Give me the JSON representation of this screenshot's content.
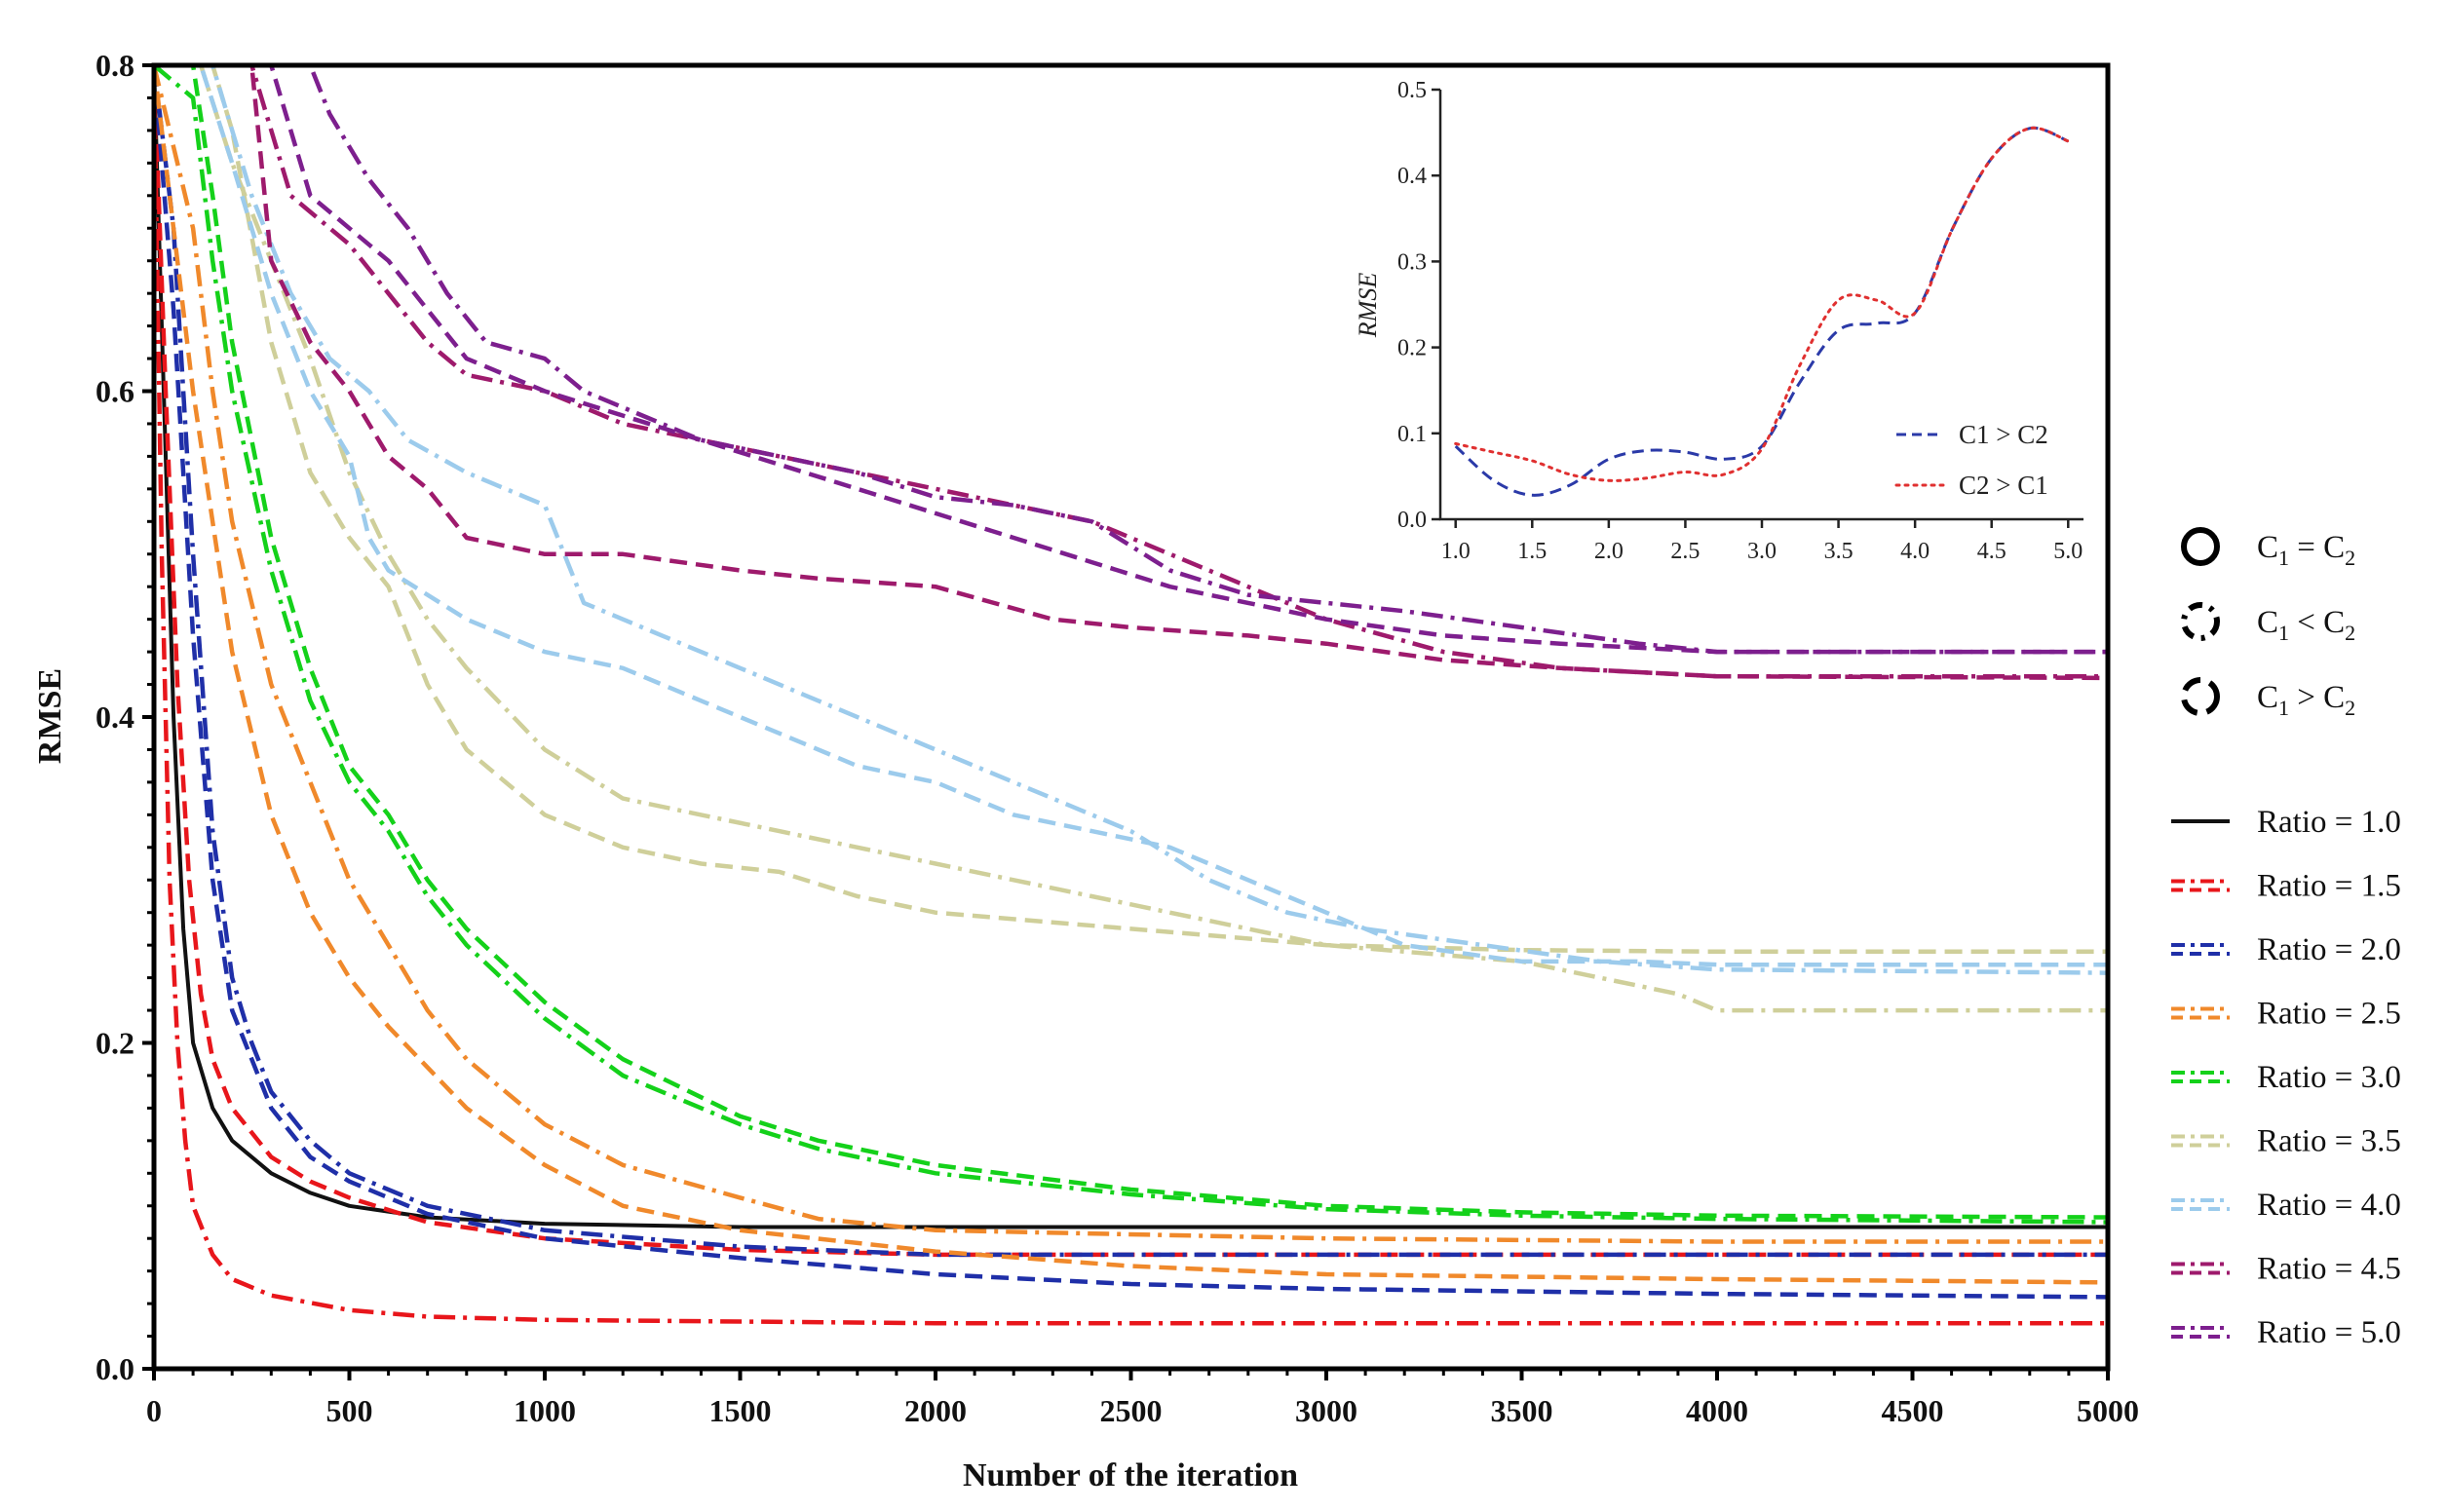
{
  "chart_data": [
    {
      "type": "line",
      "title": "",
      "xlabel": "Number of the iteration",
      "ylabel": "RMSE",
      "xlim": [
        0,
        5000
      ],
      "ylim": [
        0,
        0.8
      ],
      "xticks": [
        "0",
        "500",
        "1000",
        "1500",
        "2000",
        "2500",
        "3000",
        "3500",
        "4000",
        "4500",
        "5000"
      ],
      "yticks": [
        "0.0",
        "0.2",
        "0.4",
        "0.6",
        "0.8"
      ],
      "grid": false,
      "legend_position": "right",
      "style_legend": [
        {
          "name": "C1 = C2",
          "sym_main": "C",
          "sub1": "1",
          "op": " = ",
          "sub2": "2",
          "style": "solid"
        },
        {
          "name": "C1 < C2",
          "sym_main": "C",
          "sub1": "1",
          "op": " < ",
          "sub2": "2",
          "style": "dash-dot"
        },
        {
          "name": "C1 > C2",
          "sym_main": "C",
          "sub1": "1",
          "op": " > ",
          "sub2": "2",
          "style": "dashed"
        }
      ],
      "series": [
        {
          "name": "Ratio = 1.0",
          "color": "#111111",
          "style": "solid",
          "x": [
            0,
            25,
            50,
            75,
            100,
            150,
            200,
            300,
            400,
            500,
            700,
            1000,
            1500,
            2000,
            3000,
            4000,
            5000
          ],
          "values": [
            0.8,
            0.6,
            0.4,
            0.27,
            0.2,
            0.16,
            0.14,
            0.12,
            0.108,
            0.1,
            0.093,
            0.089,
            0.087,
            0.087,
            0.087,
            0.087,
            0.087
          ]
        },
        {
          "name": "Ratio = 1.5 (C1 < C2)",
          "color": "#e8161b",
          "style": "dash-dot",
          "x": [
            0,
            20,
            40,
            60,
            80,
            100,
            150,
            200,
            300,
            500,
            700,
            1000,
            1500,
            2000,
            3000,
            4000,
            5000
          ],
          "values": [
            0.8,
            0.5,
            0.3,
            0.2,
            0.14,
            0.1,
            0.07,
            0.055,
            0.045,
            0.036,
            0.032,
            0.03,
            0.029,
            0.028,
            0.028,
            0.028,
            0.028
          ]
        },
        {
          "name": "Ratio = 1.5 (C1 > C2)",
          "color": "#e8161b",
          "style": "dashed",
          "x": [
            0,
            30,
            60,
            90,
            120,
            150,
            200,
            300,
            400,
            500,
            700,
            1000,
            1500,
            2000,
            3000,
            5000
          ],
          "values": [
            0.8,
            0.6,
            0.42,
            0.3,
            0.23,
            0.19,
            0.16,
            0.13,
            0.115,
            0.105,
            0.09,
            0.08,
            0.073,
            0.07,
            0.07,
            0.07
          ]
        },
        {
          "name": "Ratio = 2.0 (C1 < C2)",
          "color": "#1f2fa8",
          "style": "dash-dot",
          "x": [
            0,
            50,
            100,
            150,
            200,
            250,
            300,
            400,
            500,
            700,
            1000,
            1500,
            2000,
            3000,
            4000,
            5000
          ],
          "values": [
            0.8,
            0.7,
            0.5,
            0.33,
            0.24,
            0.2,
            0.17,
            0.14,
            0.12,
            0.1,
            0.085,
            0.075,
            0.07,
            0.07,
            0.07,
            0.07
          ]
        },
        {
          "name": "Ratio = 2.0 (C1 > C2)",
          "color": "#1f2fa8",
          "style": "dashed",
          "x": [
            0,
            50,
            100,
            150,
            200,
            250,
            300,
            400,
            500,
            700,
            1000,
            1500,
            2000,
            2500,
            3000,
            4000,
            5000
          ],
          "values": [
            0.8,
            0.65,
            0.45,
            0.3,
            0.22,
            0.19,
            0.16,
            0.13,
            0.115,
            0.095,
            0.08,
            0.068,
            0.058,
            0.052,
            0.049,
            0.046,
            0.044
          ]
        },
        {
          "name": "Ratio = 2.5 (C1 < C2)",
          "color": "#f0892b",
          "style": "dash-dot",
          "x": [
            0,
            100,
            150,
            200,
            300,
            400,
            500,
            600,
            700,
            800,
            1000,
            1200,
            1500,
            1700,
            2000,
            3000,
            4000,
            5000
          ],
          "values": [
            0.8,
            0.7,
            0.6,
            0.52,
            0.42,
            0.36,
            0.3,
            0.26,
            0.22,
            0.19,
            0.15,
            0.125,
            0.105,
            0.092,
            0.085,
            0.08,
            0.078,
            0.078
          ]
        },
        {
          "name": "Ratio = 2.5 (C1 > C2)",
          "color": "#f0892b",
          "style": "dashed",
          "x": [
            0,
            100,
            200,
            300,
            400,
            500,
            600,
            800,
            1000,
            1200,
            1500,
            2000,
            2500,
            3000,
            4000,
            5000
          ],
          "values": [
            0.8,
            0.6,
            0.44,
            0.34,
            0.28,
            0.24,
            0.21,
            0.16,
            0.125,
            0.1,
            0.085,
            0.072,
            0.063,
            0.058,
            0.055,
            0.053
          ]
        },
        {
          "name": "Ratio = 3.0 (C1 < C2)",
          "color": "#14d11a",
          "style": "dash-dot",
          "x": [
            0,
            100,
            150,
            200,
            300,
            400,
            500,
            600,
            700,
            800,
            1000,
            1200,
            1500,
            1700,
            2000,
            2500,
            3000,
            3500,
            4000,
            5000
          ],
          "values": [
            0.8,
            0.78,
            0.68,
            0.6,
            0.49,
            0.41,
            0.36,
            0.33,
            0.29,
            0.26,
            0.215,
            0.18,
            0.15,
            0.135,
            0.12,
            0.107,
            0.098,
            0.094,
            0.092,
            0.09
          ]
        },
        {
          "name": "Ratio = 3.0 (C1 > C2)",
          "color": "#14d11a",
          "style": "dashed",
          "x": [
            0,
            100,
            150,
            200,
            300,
            400,
            500,
            600,
            700,
            800,
            1000,
            1200,
            1500,
            1700,
            2000,
            2500,
            3000,
            3500,
            4000,
            5000
          ],
          "values": [
            0.8,
            0.8,
            0.72,
            0.63,
            0.51,
            0.43,
            0.37,
            0.34,
            0.3,
            0.27,
            0.225,
            0.19,
            0.155,
            0.14,
            0.125,
            0.11,
            0.1,
            0.096,
            0.094,
            0.093
          ]
        },
        {
          "name": "Ratio = 3.5 (C1 < C2)",
          "color": "#cfcf9a",
          "style": "dash-dot",
          "x": [
            0,
            120,
            200,
            300,
            400,
            500,
            600,
            700,
            800,
            1000,
            1200,
            1400,
            1600,
            1800,
            2000,
            2200,
            2400,
            2800,
            3000,
            3500,
            3700,
            3900,
            4000,
            5000
          ],
          "values": [
            0.8,
            0.8,
            0.74,
            0.68,
            0.62,
            0.55,
            0.5,
            0.46,
            0.43,
            0.38,
            0.35,
            0.34,
            0.33,
            0.32,
            0.31,
            0.3,
            0.29,
            0.27,
            0.26,
            0.25,
            0.24,
            0.23,
            0.22,
            0.22
          ]
        },
        {
          "name": "Ratio = 3.5 (C1 > C2)",
          "color": "#cfcf9a",
          "style": "dashed",
          "x": [
            0,
            150,
            200,
            300,
            400,
            500,
            600,
            700,
            800,
            1000,
            1200,
            1400,
            1600,
            1800,
            2000,
            2500,
            3000,
            3500,
            4000,
            5000
          ],
          "values": [
            0.8,
            0.8,
            0.76,
            0.63,
            0.55,
            0.51,
            0.48,
            0.42,
            0.38,
            0.34,
            0.32,
            0.31,
            0.305,
            0.29,
            0.28,
            0.27,
            0.26,
            0.257,
            0.256,
            0.256
          ]
        },
        {
          "name": "Ratio = 4.0 (C1 < C2)",
          "color": "#9ccbec",
          "style": "dash-dot",
          "x": [
            0,
            150,
            250,
            350,
            450,
            550,
            650,
            800,
            1000,
            1100,
            1300,
            1500,
            1700,
            1900,
            2100,
            2300,
            2500,
            2700,
            2900,
            3100,
            3400,
            3700,
            4000,
            5000
          ],
          "values": [
            0.8,
            0.8,
            0.72,
            0.66,
            0.62,
            0.6,
            0.57,
            0.55,
            0.53,
            0.47,
            0.45,
            0.43,
            0.41,
            0.39,
            0.37,
            0.35,
            0.33,
            0.3,
            0.28,
            0.27,
            0.26,
            0.25,
            0.245,
            0.243
          ]
        },
        {
          "name": "Ratio = 4.0 (C1 > C2)",
          "color": "#9ccbec",
          "style": "dashed",
          "x": [
            0,
            120,
            200,
            300,
            400,
            500,
            550,
            600,
            800,
            1000,
            1200,
            1400,
            1600,
            1800,
            2000,
            2200,
            2400,
            2600,
            2800,
            3000,
            3200,
            3500,
            3800,
            4000,
            5000
          ],
          "values": [
            0.8,
            0.8,
            0.74,
            0.66,
            0.6,
            0.56,
            0.51,
            0.49,
            0.46,
            0.44,
            0.43,
            0.41,
            0.39,
            0.37,
            0.36,
            0.34,
            0.33,
            0.32,
            0.3,
            0.28,
            0.26,
            0.25,
            0.25,
            0.248,
            0.248
          ]
        },
        {
          "name": "Ratio = 4.5 (C1 < C2)",
          "color": "#9e1a6c",
          "style": "dash-dot",
          "x": [
            0,
            250,
            350,
            500,
            600,
            700,
            800,
            1000,
            1200,
            1400,
            1600,
            1800,
            2000,
            2200,
            2400,
            2600,
            2800,
            3000,
            3300,
            3600,
            4000,
            5000
          ],
          "values": [
            0.8,
            0.8,
            0.72,
            0.69,
            0.66,
            0.63,
            0.61,
            0.6,
            0.58,
            0.57,
            0.56,
            0.55,
            0.54,
            0.53,
            0.52,
            0.5,
            0.48,
            0.46,
            0.44,
            0.43,
            0.425,
            0.425
          ]
        },
        {
          "name": "Ratio = 4.5 (C1 > C2)",
          "color": "#9e1a6c",
          "style": "dashed",
          "x": [
            0,
            250,
            300,
            400,
            500,
            600,
            700,
            800,
            1000,
            1200,
            1500,
            1700,
            2000,
            2300,
            2500,
            2800,
            3000,
            3300,
            3600,
            4000,
            5000
          ],
          "values": [
            0.8,
            0.8,
            0.68,
            0.63,
            0.6,
            0.56,
            0.54,
            0.51,
            0.5,
            0.5,
            0.49,
            0.485,
            0.48,
            0.46,
            0.455,
            0.45,
            0.445,
            0.435,
            0.43,
            0.425,
            0.424
          ]
        },
        {
          "name": "Ratio = 5.0 (C1 < C2)",
          "color": "#7d1f8e",
          "style": "dash-dot",
          "x": [
            0,
            400,
            450,
            550,
            650,
            750,
            850,
            1000,
            1100,
            1200,
            1400,
            1600,
            1800,
            2000,
            2200,
            2400,
            2600,
            2800,
            3000,
            3200,
            3500,
            3800,
            4000,
            5000
          ],
          "values": [
            0.8,
            0.8,
            0.77,
            0.73,
            0.7,
            0.66,
            0.63,
            0.62,
            0.6,
            0.59,
            0.57,
            0.56,
            0.55,
            0.535,
            0.53,
            0.52,
            0.49,
            0.475,
            0.47,
            0.465,
            0.455,
            0.445,
            0.44,
            0.44
          ]
        },
        {
          "name": "Ratio = 5.0 (C1 > C2)",
          "color": "#7d1f8e",
          "style": "dashed",
          "x": [
            0,
            300,
            400,
            500,
            600,
            700,
            800,
            1000,
            1200,
            1400,
            1600,
            1800,
            2000,
            2200,
            2400,
            2600,
            2800,
            3000,
            3300,
            3600,
            4000,
            5000
          ],
          "values": [
            0.8,
            0.8,
            0.72,
            0.7,
            0.68,
            0.65,
            0.62,
            0.6,
            0.585,
            0.57,
            0.555,
            0.54,
            0.525,
            0.51,
            0.495,
            0.48,
            0.47,
            0.46,
            0.45,
            0.445,
            0.44,
            0.44
          ]
        }
      ],
      "ratio_legend": [
        {
          "label": "Ratio = 1.0",
          "color": "#111111",
          "style": "solid"
        },
        {
          "label": "Ratio = 1.5",
          "color": "#e8161b",
          "style": "pair"
        },
        {
          "label": "Ratio = 2.0",
          "color": "#1f2fa8",
          "style": "pair"
        },
        {
          "label": "Ratio = 2.5",
          "color": "#f0892b",
          "style": "pair"
        },
        {
          "label": "Ratio = 3.0",
          "color": "#14d11a",
          "style": "pair"
        },
        {
          "label": "Ratio = 3.5",
          "color": "#cfcf9a",
          "style": "pair"
        },
        {
          "label": "Ratio = 4.0",
          "color": "#9ccbec",
          "style": "pair"
        },
        {
          "label": "Ratio = 4.5",
          "color": "#9e1a6c",
          "style": "pair"
        },
        {
          "label": "Ratio = 5.0",
          "color": "#7d1f8e",
          "style": "pair"
        }
      ]
    },
    {
      "type": "line",
      "title": "",
      "xlabel": "",
      "ylabel": "RMSE",
      "xlim": [
        0.9,
        5.1
      ],
      "ylim": [
        0,
        0.5
      ],
      "xticks": [
        "1.0",
        "1.5",
        "2.0",
        "2.5",
        "3.0",
        "3.5",
        "4.0",
        "4.5",
        "5.0"
      ],
      "yticks": [
        "0.0",
        "0.1",
        "0.2",
        "0.3",
        "0.4",
        "0.5"
      ],
      "legend_position": "bottom-right",
      "series": [
        {
          "name": "C1 > C2",
          "color": "#2b3aa8",
          "style": "dashed",
          "x": [
            1.0,
            1.25,
            1.5,
            1.75,
            2.0,
            2.25,
            2.5,
            2.75,
            3.0,
            3.25,
            3.5,
            3.75,
            4.0,
            4.25,
            4.5,
            4.75,
            5.0
          ],
          "values": [
            0.085,
            0.045,
            0.028,
            0.04,
            0.07,
            0.08,
            0.078,
            0.07,
            0.085,
            0.16,
            0.22,
            0.228,
            0.24,
            0.34,
            0.42,
            0.455,
            0.44
          ]
        },
        {
          "name": "C2 > C1",
          "color": "#e03030",
          "style": "dotted",
          "x": [
            1.0,
            1.25,
            1.5,
            1.75,
            2.0,
            2.25,
            2.5,
            2.75,
            3.0,
            3.25,
            3.5,
            3.75,
            4.0,
            4.25,
            4.5,
            4.75,
            5.0
          ],
          "values": [
            0.088,
            0.078,
            0.068,
            0.052,
            0.045,
            0.048,
            0.055,
            0.052,
            0.082,
            0.18,
            0.255,
            0.255,
            0.24,
            0.34,
            0.42,
            0.455,
            0.44
          ]
        }
      ]
    }
  ]
}
